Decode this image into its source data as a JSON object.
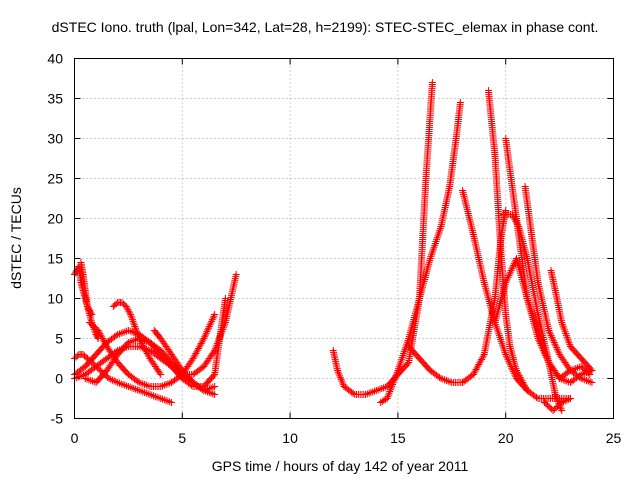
{
  "chart_data": {
    "type": "scatter",
    "title": "dSTEC Iono. truth (lpal, Lon=342, Lat=28, h=2199): STEC-STEC_elemax in phase cont.",
    "xlabel": "GPS time / hours of day 142 of year 2011",
    "ylabel": "dSTEC  / TECUs",
    "xlim": [
      0,
      25
    ],
    "ylim": [
      -5,
      40
    ],
    "xticks": [
      0,
      5,
      10,
      15,
      20,
      25
    ],
    "yticks": [
      -5,
      0,
      5,
      10,
      15,
      20,
      25,
      30,
      35,
      40
    ],
    "grid": true,
    "marker": "plus",
    "color": "#ff0000",
    "series": [
      {
        "x": [
          0.0,
          0.1,
          0.2,
          0.3,
          0.4,
          0.5,
          0.6,
          0.7,
          0.8
        ],
        "y": [
          13.0,
          13.5,
          14.0,
          12.0,
          11.0,
          10.0,
          9.0,
          8.5,
          8.0
        ]
      },
      {
        "x": [
          0.3,
          0.4,
          0.5,
          0.6,
          0.8,
          1.0,
          1.1
        ],
        "y": [
          14.5,
          13.0,
          11.0,
          9.0,
          7.0,
          5.5,
          5.0
        ]
      },
      {
        "x": [
          0.7,
          0.9,
          1.1,
          1.3,
          1.5,
          2.0,
          2.5,
          3.0,
          3.5,
          4.0,
          4.5,
          5.0,
          5.5,
          6.0,
          6.5
        ],
        "y": [
          7.0,
          6.5,
          6.0,
          5.0,
          4.0,
          2.0,
          0.5,
          -0.5,
          -1.0,
          -1.0,
          -0.5,
          0.5,
          2.5,
          5.0,
          8.0
        ]
      },
      {
        "x": [
          0.0,
          0.2,
          0.4,
          0.6,
          0.8,
          1.2,
          1.6,
          2.0,
          2.5,
          3.0,
          3.5,
          4.0,
          4.5
        ],
        "y": [
          2.5,
          3.0,
          3.0,
          2.5,
          2.0,
          1.0,
          0.0,
          -0.5,
          -1.0,
          -1.5,
          -2.0,
          -2.5,
          -3.0
        ]
      },
      {
        "x": [
          0.0,
          0.5,
          1.0,
          1.5,
          2.0,
          2.5,
          3.0,
          3.5,
          4.0,
          4.5,
          5.0,
          5.5,
          6.0,
          6.5,
          7.0,
          7.5
        ],
        "y": [
          0.0,
          0.5,
          1.5,
          2.5,
          3.5,
          4.0,
          4.0,
          3.5,
          2.5,
          1.5,
          0.5,
          0.5,
          1.5,
          3.5,
          7.0,
          13.0
        ]
      },
      {
        "x": [
          0.0,
          0.5,
          1.0,
          1.5,
          2.0,
          2.5,
          3.0,
          3.5,
          4.0,
          4.5,
          5.0,
          5.5,
          6.0,
          6.5,
          7.0
        ],
        "y": [
          0.5,
          1.5,
          3.0,
          4.5,
          5.5,
          6.0,
          5.5,
          4.5,
          3.0,
          1.5,
          0.0,
          -1.0,
          -1.0,
          0.5,
          10.0
        ]
      },
      {
        "x": [
          0.5,
          1.0,
          1.5,
          2.0,
          2.5,
          3.0,
          3.5,
          4.0,
          4.5,
          5.0,
          5.5,
          6.0,
          6.5
        ],
        "y": [
          0.0,
          -0.5,
          1.0,
          3.0,
          4.5,
          5.0,
          4.5,
          3.5,
          2.0,
          0.5,
          -0.5,
          -1.5,
          -2.0
        ]
      },
      {
        "x": [
          1.8,
          2.0,
          2.2,
          2.4,
          2.6,
          2.8,
          3.0,
          3.5,
          4.0
        ],
        "y": [
          9.0,
          9.5,
          9.5,
          9.0,
          8.0,
          6.5,
          5.0,
          2.5,
          0.5
        ]
      },
      {
        "x": [
          3.7,
          4.0,
          4.5,
          5.0,
          5.5,
          6.0,
          6.5
        ],
        "y": [
          6.0,
          5.0,
          3.0,
          1.0,
          -0.5,
          -1.5,
          -1.0
        ]
      },
      {
        "x": [
          12.0,
          12.2,
          12.5,
          13.0,
          13.5,
          14.0,
          14.5,
          15.0,
          15.5,
          16.0,
          16.3,
          16.6
        ],
        "y": [
          3.5,
          1.0,
          -1.0,
          -2.0,
          -2.0,
          -1.5,
          -1.0,
          0.5,
          2.0,
          10.0,
          25.0,
          37.0
        ]
      },
      {
        "x": [
          14.2,
          14.5,
          15.0,
          15.5,
          16.0,
          16.5,
          17.0,
          17.4,
          17.7,
          17.9
        ],
        "y": [
          -3.0,
          -2.5,
          1.0,
          5.0,
          10.0,
          15.0,
          19.0,
          24.0,
          30.0,
          34.5
        ]
      },
      {
        "x": [
          15.5,
          16.0,
          16.5,
          17.0,
          17.5,
          18.0,
          18.5,
          19.0,
          19.5,
          19.8,
          20.0
        ],
        "y": [
          4.0,
          2.5,
          1.0,
          0.0,
          -0.5,
          -0.5,
          0.5,
          3.0,
          10.0,
          18.0,
          21.0
        ]
      },
      {
        "x": [
          18.0,
          18.5,
          19.0,
          19.5,
          20.0,
          20.5,
          21.0,
          21.5,
          22.0,
          22.5,
          23.0
        ],
        "y": [
          23.5,
          18.0,
          12.0,
          7.0,
          3.0,
          0.0,
          -1.5,
          -2.5,
          -2.5,
          -2.5,
          -2.5
        ]
      },
      {
        "x": [
          19.2,
          19.5,
          19.8,
          20.0,
          20.2,
          20.5,
          20.8,
          21.0
        ],
        "y": [
          36.0,
          28.0,
          15.0,
          8.0,
          4.0,
          1.0,
          -0.5,
          -1.5
        ]
      },
      {
        "x": [
          19.5,
          20.0,
          20.5,
          21.0,
          21.5,
          22.0,
          22.5,
          23.0,
          23.5,
          23.9
        ],
        "y": [
          7.0,
          12.0,
          15.0,
          10.0,
          6.0,
          2.0,
          0.0,
          1.0,
          1.5,
          0.5
        ]
      },
      {
        "x": [
          20.0,
          20.5,
          21.0,
          21.5,
          22.0,
          22.5,
          23.0,
          23.5,
          24.0
        ],
        "y": [
          30.0,
          20.0,
          10.0,
          5.0,
          2.0,
          0.0,
          -0.5,
          0.5,
          1.0
        ]
      },
      {
        "x": [
          20.9,
          21.2,
          21.5,
          22.0,
          22.5,
          23.0,
          23.5,
          24.0
        ],
        "y": [
          24.0,
          18.0,
          12.0,
          6.0,
          3.0,
          1.0,
          0.0,
          -0.5
        ]
      },
      {
        "x": [
          19.9,
          20.3,
          20.6,
          21.0,
          21.5,
          22.0,
          22.3,
          22.6
        ],
        "y": [
          20.5,
          20.5,
          19.0,
          15.0,
          8.0,
          2.0,
          -2.0,
          -4.0
        ]
      },
      {
        "x": [
          22.1,
          22.3,
          22.6,
          23.0,
          23.5,
          24.0
        ],
        "y": [
          13.5,
          11.0,
          7.0,
          4.0,
          2.5,
          1.0
        ]
      },
      {
        "x": [
          21.8,
          22.0,
          22.2,
          22.4,
          22.6,
          23.0
        ],
        "y": [
          -3.0,
          -3.5,
          -4.0,
          -3.5,
          -3.0,
          -2.5
        ]
      }
    ]
  }
}
